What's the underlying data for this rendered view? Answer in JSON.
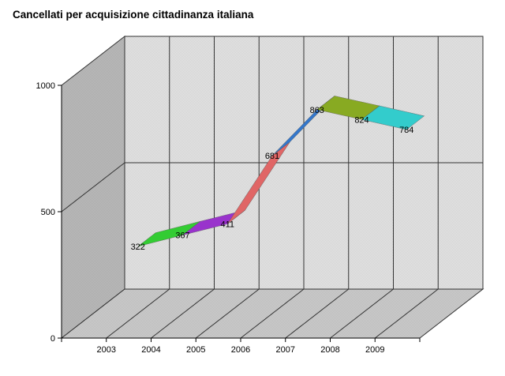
{
  "chart_data": {
    "type": "line",
    "title": "Cancellati per acquisizione cittadinanza italiana",
    "xlabel": "",
    "ylabel": "",
    "categories": [
      "2003",
      "2004",
      "2005",
      "2006",
      "2007",
      "2008",
      "2009"
    ],
    "series": [
      {
        "values": [
          322,
          367,
          411,
          681,
          863,
          824,
          784
        ]
      }
    ],
    "data_labels": [
      "322",
      "367",
      "411",
      "681",
      "863",
      "824",
      "784"
    ],
    "y_ticks": [
      "0",
      "500",
      "1000"
    ],
    "ylim": [
      0,
      1000
    ],
    "grid": true,
    "style": "3d",
    "segment_colors": [
      "#33cc33",
      "#9933cc",
      "#e06666",
      "#3377cc",
      "#88aa22",
      "#33cccc"
    ],
    "wall_colors": {
      "back": "#e8e8e8",
      "side": "#bdbdbd",
      "floor": "#cfcfcf",
      "grid": "#333333"
    }
  }
}
